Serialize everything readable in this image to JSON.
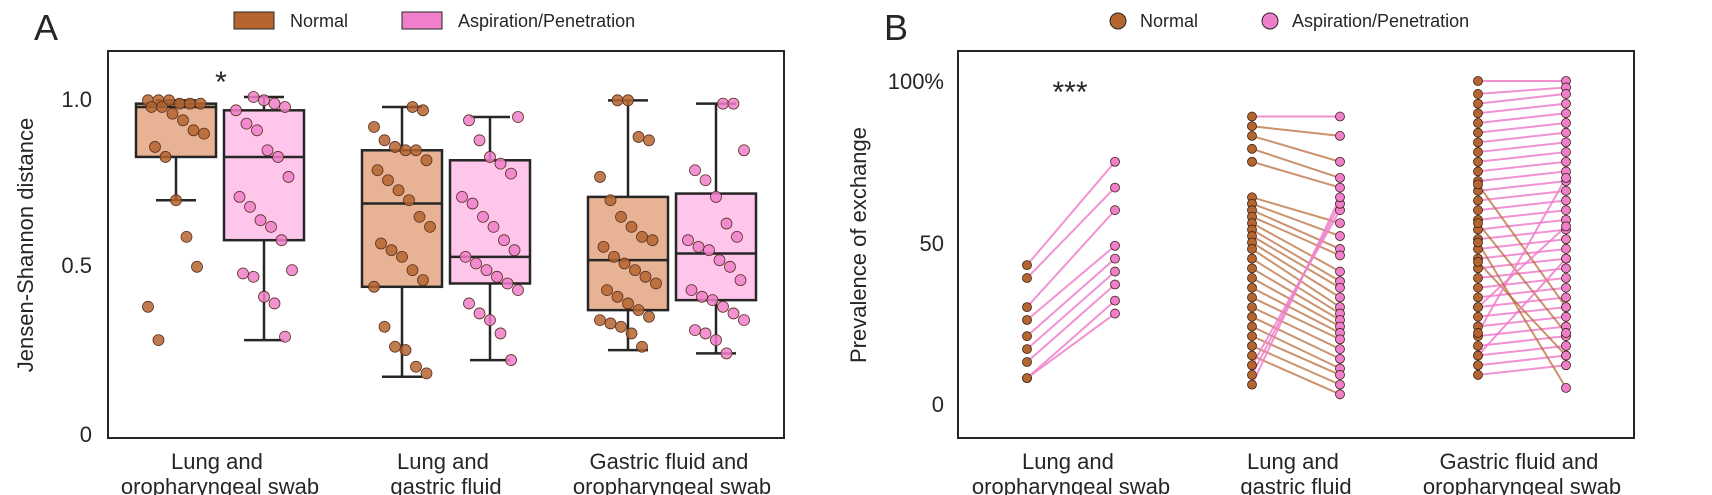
{
  "colors": {
    "normal": "#b5652f",
    "normal_box": "#e8b295",
    "aspiration": "#f07fcb",
    "aspiration_box": "#ffc6ec",
    "axis": "#262626"
  },
  "chart_data": [
    {
      "panel": "A",
      "type": "box",
      "ylabel": "Jensen-Shannon distance",
      "ylim": [
        0,
        1.0
      ],
      "yticks": [
        "0",
        "0.5",
        "1.0"
      ],
      "categories": [
        "Lung and oropharyngeal swab",
        "Lung and gastric fluid",
        "Gastric fluid and oropharyngeal swab"
      ],
      "legend": [
        "Normal",
        "Aspiration/Penetration"
      ],
      "annotation": {
        "text": "*",
        "category": 0
      },
      "series": [
        {
          "name": "Normal",
          "boxes": [
            {
              "whisker_low": 0.69,
              "q1": 0.82,
              "median": 0.97,
              "q3": 0.98,
              "whisker_high": 0.99
            },
            {
              "whisker_low": 0.16,
              "q1": 0.43,
              "median": 0.68,
              "q3": 0.84,
              "whisker_high": 0.97
            },
            {
              "whisker_low": 0.24,
              "q1": 0.36,
              "median": 0.51,
              "q3": 0.7,
              "whisker_high": 0.99
            }
          ],
          "points": [
            [
              0.99,
              0.99,
              0.99,
              0.98,
              0.98,
              0.98,
              0.97,
              0.97,
              0.95,
              0.93,
              0.9,
              0.89,
              0.85,
              0.82,
              0.69,
              0.58,
              0.49,
              0.37,
              0.27
            ],
            [
              0.97,
              0.96,
              0.91,
              0.87,
              0.85,
              0.84,
              0.84,
              0.81,
              0.78,
              0.75,
              0.72,
              0.69,
              0.64,
              0.61,
              0.56,
              0.54,
              0.52,
              0.48,
              0.45,
              0.43,
              0.31,
              0.25,
              0.24,
              0.19,
              0.17
            ],
            [
              0.99,
              0.99,
              0.88,
              0.87,
              0.76,
              0.69,
              0.64,
              0.61,
              0.58,
              0.57,
              0.55,
              0.52,
              0.5,
              0.48,
              0.46,
              0.44,
              0.42,
              0.4,
              0.38,
              0.36,
              0.34,
              0.33,
              0.32,
              0.31,
              0.29,
              0.25
            ]
          ]
        },
        {
          "name": "Aspiration/Penetration",
          "boxes": [
            {
              "whisker_low": 0.27,
              "q1": 0.57,
              "median": 0.82,
              "q3": 0.96,
              "whisker_high": 1.0
            },
            {
              "whisker_low": 0.21,
              "q1": 0.44,
              "median": 0.52,
              "q3": 0.81,
              "whisker_high": 0.94
            },
            {
              "whisker_low": 0.23,
              "q1": 0.39,
              "median": 0.53,
              "q3": 0.71,
              "whisker_high": 0.98
            }
          ],
          "points": [
            [
              1.0,
              0.99,
              0.98,
              0.97,
              0.96,
              0.92,
              0.9,
              0.84,
              0.82,
              0.76,
              0.7,
              0.67,
              0.63,
              0.61,
              0.57,
              0.48,
              0.47,
              0.46,
              0.4,
              0.38,
              0.28
            ],
            [
              0.94,
              0.93,
              0.87,
              0.82,
              0.8,
              0.77,
              0.7,
              0.68,
              0.64,
              0.61,
              0.57,
              0.54,
              0.52,
              0.5,
              0.48,
              0.46,
              0.44,
              0.42,
              0.38,
              0.35,
              0.33,
              0.29,
              0.21
            ],
            [
              0.98,
              0.98,
              0.84,
              0.78,
              0.75,
              0.7,
              0.62,
              0.58,
              0.57,
              0.55,
              0.54,
              0.51,
              0.49,
              0.45,
              0.42,
              0.4,
              0.39,
              0.37,
              0.35,
              0.33,
              0.3,
              0.29,
              0.27,
              0.23
            ]
          ]
        }
      ]
    },
    {
      "panel": "B",
      "type": "paired-line",
      "ylabel": "Prevalence of exchange",
      "ylim": [
        0,
        100
      ],
      "yticks": [
        "0",
        "50",
        "100%"
      ],
      "categories": [
        "Lung and oropharyngeal swab",
        "Lung and gastric fluid",
        "Gastric fluid and oropharyngeal swab"
      ],
      "legend": [
        "Normal",
        "Aspiration/Penetration"
      ],
      "annotation": {
        "text": "***",
        "category": 0
      },
      "pairs": [
        [
          [
            43,
            75
          ],
          [
            39,
            67
          ],
          [
            30,
            60
          ],
          [
            26,
            49
          ],
          [
            21,
            45
          ],
          [
            17,
            41
          ],
          [
            13,
            37
          ],
          [
            8,
            32
          ],
          [
            8,
            28
          ]
        ],
        [
          [
            89,
            89
          ],
          [
            86,
            83
          ],
          [
            83,
            75
          ],
          [
            79,
            70
          ],
          [
            75,
            67
          ],
          [
            64,
            56
          ],
          [
            62,
            52
          ],
          [
            60,
            48
          ],
          [
            58,
            46
          ],
          [
            56,
            41
          ],
          [
            54,
            38
          ],
          [
            52,
            36
          ],
          [
            50,
            33
          ],
          [
            48,
            30
          ],
          [
            45,
            28
          ],
          [
            42,
            26
          ],
          [
            39,
            24
          ],
          [
            36,
            22
          ],
          [
            33,
            20
          ],
          [
            30,
            17
          ],
          [
            27,
            14
          ],
          [
            24,
            11
          ],
          [
            21,
            9
          ],
          [
            18,
            6
          ],
          [
            15,
            3
          ],
          [
            12,
            60
          ],
          [
            9,
            62
          ],
          [
            6,
            64
          ]
        ],
        [
          [
            100,
            100
          ],
          [
            96,
            98
          ],
          [
            93,
            96
          ],
          [
            90,
            93
          ],
          [
            87,
            90
          ],
          [
            84,
            87
          ],
          [
            81,
            84
          ],
          [
            78,
            81
          ],
          [
            75,
            78
          ],
          [
            72,
            75
          ],
          [
            69,
            72
          ],
          [
            66,
            69
          ],
          [
            63,
            66
          ],
          [
            60,
            63
          ],
          [
            57,
            60
          ],
          [
            54,
            57
          ],
          [
            51,
            54
          ],
          [
            48,
            51
          ],
          [
            45,
            48
          ],
          [
            42,
            45
          ],
          [
            39,
            42
          ],
          [
            36,
            39
          ],
          [
            33,
            36
          ],
          [
            30,
            33
          ],
          [
            27,
            30
          ],
          [
            24,
            27
          ],
          [
            21,
            24
          ],
          [
            18,
            21
          ],
          [
            15,
            18
          ],
          [
            12,
            15
          ],
          [
            9,
            12
          ],
          [
            68,
            30
          ],
          [
            56,
            22
          ],
          [
            44,
            15
          ],
          [
            30,
            55
          ],
          [
            22,
            70
          ],
          [
            15,
            45
          ],
          [
            50,
            5
          ]
        ]
      ]
    }
  ]
}
